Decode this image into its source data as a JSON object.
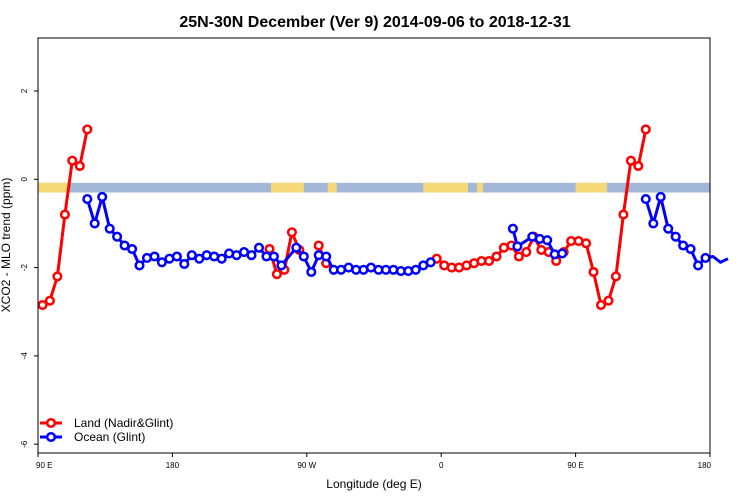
{
  "chart_data": {
    "type": "line",
    "title": "25N-30N December (Ver 9)   2014-09-06 to 2018-12-31",
    "xlabel": "Longitude (deg E)",
    "ylabel": "XCO2 - MLO trend (ppm)",
    "xlim": [
      90,
      540
    ],
    "ylim": [
      -6.2,
      3.2
    ],
    "x_ticks": [
      {
        "value": 90,
        "label": "90 E"
      },
      {
        "value": 180,
        "label": "180"
      },
      {
        "value": 270,
        "label": "90 W"
      },
      {
        "value": 360,
        "label": "0"
      },
      {
        "value": 450,
        "label": "90 E"
      },
      {
        "value": 540,
        "label": "180"
      }
    ],
    "y_ticks": [
      {
        "value": -6,
        "label": "-6"
      },
      {
        "value": -4,
        "label": "-4"
      },
      {
        "value": -2,
        "label": "-2"
      },
      {
        "value": 0,
        "label": "0"
      },
      {
        "value": 2,
        "label": "2"
      }
    ],
    "surface_band": {
      "y_top": -0.08,
      "y_bottom": -0.3,
      "ocean_color": "#a3b8d8",
      "land_color": "#f5d878",
      "land_segments": [
        [
          90,
          111
        ],
        [
          246,
          268
        ],
        [
          284,
          290
        ],
        [
          348,
          378
        ],
        [
          384,
          388
        ],
        [
          450,
          471
        ]
      ]
    },
    "series": [
      {
        "name": "Land (Nadir&Glint)",
        "color": "#ff0000",
        "segments": [
          [
            [
              93,
              -2.85
            ],
            [
              98,
              -2.75
            ],
            [
              103,
              -2.2
            ],
            [
              108,
              -0.8
            ],
            [
              113,
              0.42
            ],
            [
              118,
              0.3
            ],
            [
              123,
              1.13
            ]
          ],
          [
            [
              245,
              -1.58
            ],
            [
              250,
              -2.15
            ],
            [
              255,
              -2.05
            ],
            [
              260,
              -1.2
            ],
            [
              265,
              -1.6
            ]
          ],
          [
            [
              278,
              -1.5
            ],
            [
              283,
              -1.9
            ]
          ],
          [
            [
              357,
              -1.8
            ],
            [
              362,
              -1.95
            ],
            [
              367,
              -2.0
            ],
            [
              372,
              -2.0
            ],
            [
              377,
              -1.95
            ],
            [
              382,
              -1.9
            ],
            [
              387,
              -1.85
            ],
            [
              392,
              -1.85
            ],
            [
              397,
              -1.75
            ],
            [
              402,
              -1.55
            ],
            [
              407,
              -1.5
            ],
            [
              412,
              -1.75
            ],
            [
              417,
              -1.65
            ],
            [
              422,
              -1.3
            ],
            [
              427,
              -1.6
            ],
            [
              432,
              -1.65
            ],
            [
              437,
              -1.85
            ],
            [
              442,
              -1.65
            ],
            [
              447,
              -1.4
            ],
            [
              452,
              -1.4
            ],
            [
              457,
              -1.45
            ],
            [
              462,
              -2.1
            ],
            [
              467,
              -2.85
            ],
            [
              472,
              -2.75
            ],
            [
              477,
              -2.2
            ],
            [
              482,
              -0.8
            ],
            [
              487,
              0.42
            ],
            [
              492,
              0.3
            ],
            [
              497,
              1.13
            ]
          ]
        ]
      },
      {
        "name": "Ocean (Glint)",
        "color": "#0000ff",
        "segments": [
          [
            [
              123,
              -0.45
            ],
            [
              128,
              -1.0
            ],
            [
              133,
              -0.4
            ],
            [
              138,
              -1.12
            ],
            [
              143,
              -1.3
            ],
            [
              148,
              -1.5
            ],
            [
              153,
              -1.58
            ],
            [
              158,
              -1.95
            ],
            [
              163,
              -1.78
            ],
            [
              168,
              -1.75
            ],
            [
              173,
              -1.88
            ],
            [
              178,
              -1.8
            ],
            [
              183,
              -1.75
            ],
            [
              188,
              -1.92
            ],
            [
              193,
              -1.72
            ],
            [
              198,
              -1.8
            ],
            [
              203,
              -1.72
            ],
            [
              208,
              -1.75
            ],
            [
              213,
              -1.8
            ],
            [
              218,
              -1.68
            ],
            [
              223,
              -1.72
            ],
            [
              228,
              -1.65
            ],
            [
              233,
              -1.72
            ],
            [
              238,
              -1.55
            ],
            [
              243,
              -1.75
            ],
            [
              248,
              -1.75
            ],
            [
              253,
              -1.95
            ],
            [
              263,
              -1.55
            ],
            [
              268,
              -1.75
            ],
            [
              273,
              -2.1
            ],
            [
              278,
              -1.72
            ],
            [
              283,
              -1.75
            ],
            [
              288,
              -2.05
            ],
            [
              293,
              -2.05
            ],
            [
              298,
              -2.0
            ],
            [
              303,
              -2.05
            ],
            [
              308,
              -2.05
            ],
            [
              313,
              -2.0
            ],
            [
              318,
              -2.05
            ],
            [
              323,
              -2.05
            ],
            [
              328,
              -2.05
            ],
            [
              333,
              -2.08
            ],
            [
              338,
              -2.08
            ],
            [
              343,
              -2.05
            ],
            [
              348,
              -1.95
            ],
            [
              353,
              -1.88
            ]
          ],
          [
            [
              408,
              -1.12
            ],
            [
              411,
              -1.52
            ],
            [
              421,
              -1.3
            ],
            [
              426,
              -1.35
            ],
            [
              431,
              -1.38
            ],
            [
              436,
              -1.7
            ],
            [
              441,
              -1.68
            ]
          ],
          [
            [
              497,
              -0.45
            ],
            [
              502,
              -1.0
            ],
            [
              507,
              -0.4
            ],
            [
              512,
              -1.12
            ],
            [
              517,
              -1.3
            ],
            [
              522,
              -1.5
            ],
            [
              527,
              -1.58
            ],
            [
              532,
              -1.95
            ],
            [
              537,
              -1.78
            ],
            [
              542,
              -1.75
            ],
            [
              547,
              -1.88
            ],
            [
              552,
              -1.8
            ]
          ]
        ]
      }
    ],
    "legend": {
      "placement": "bottom-left",
      "frame": false
    },
    "grid": false
  }
}
